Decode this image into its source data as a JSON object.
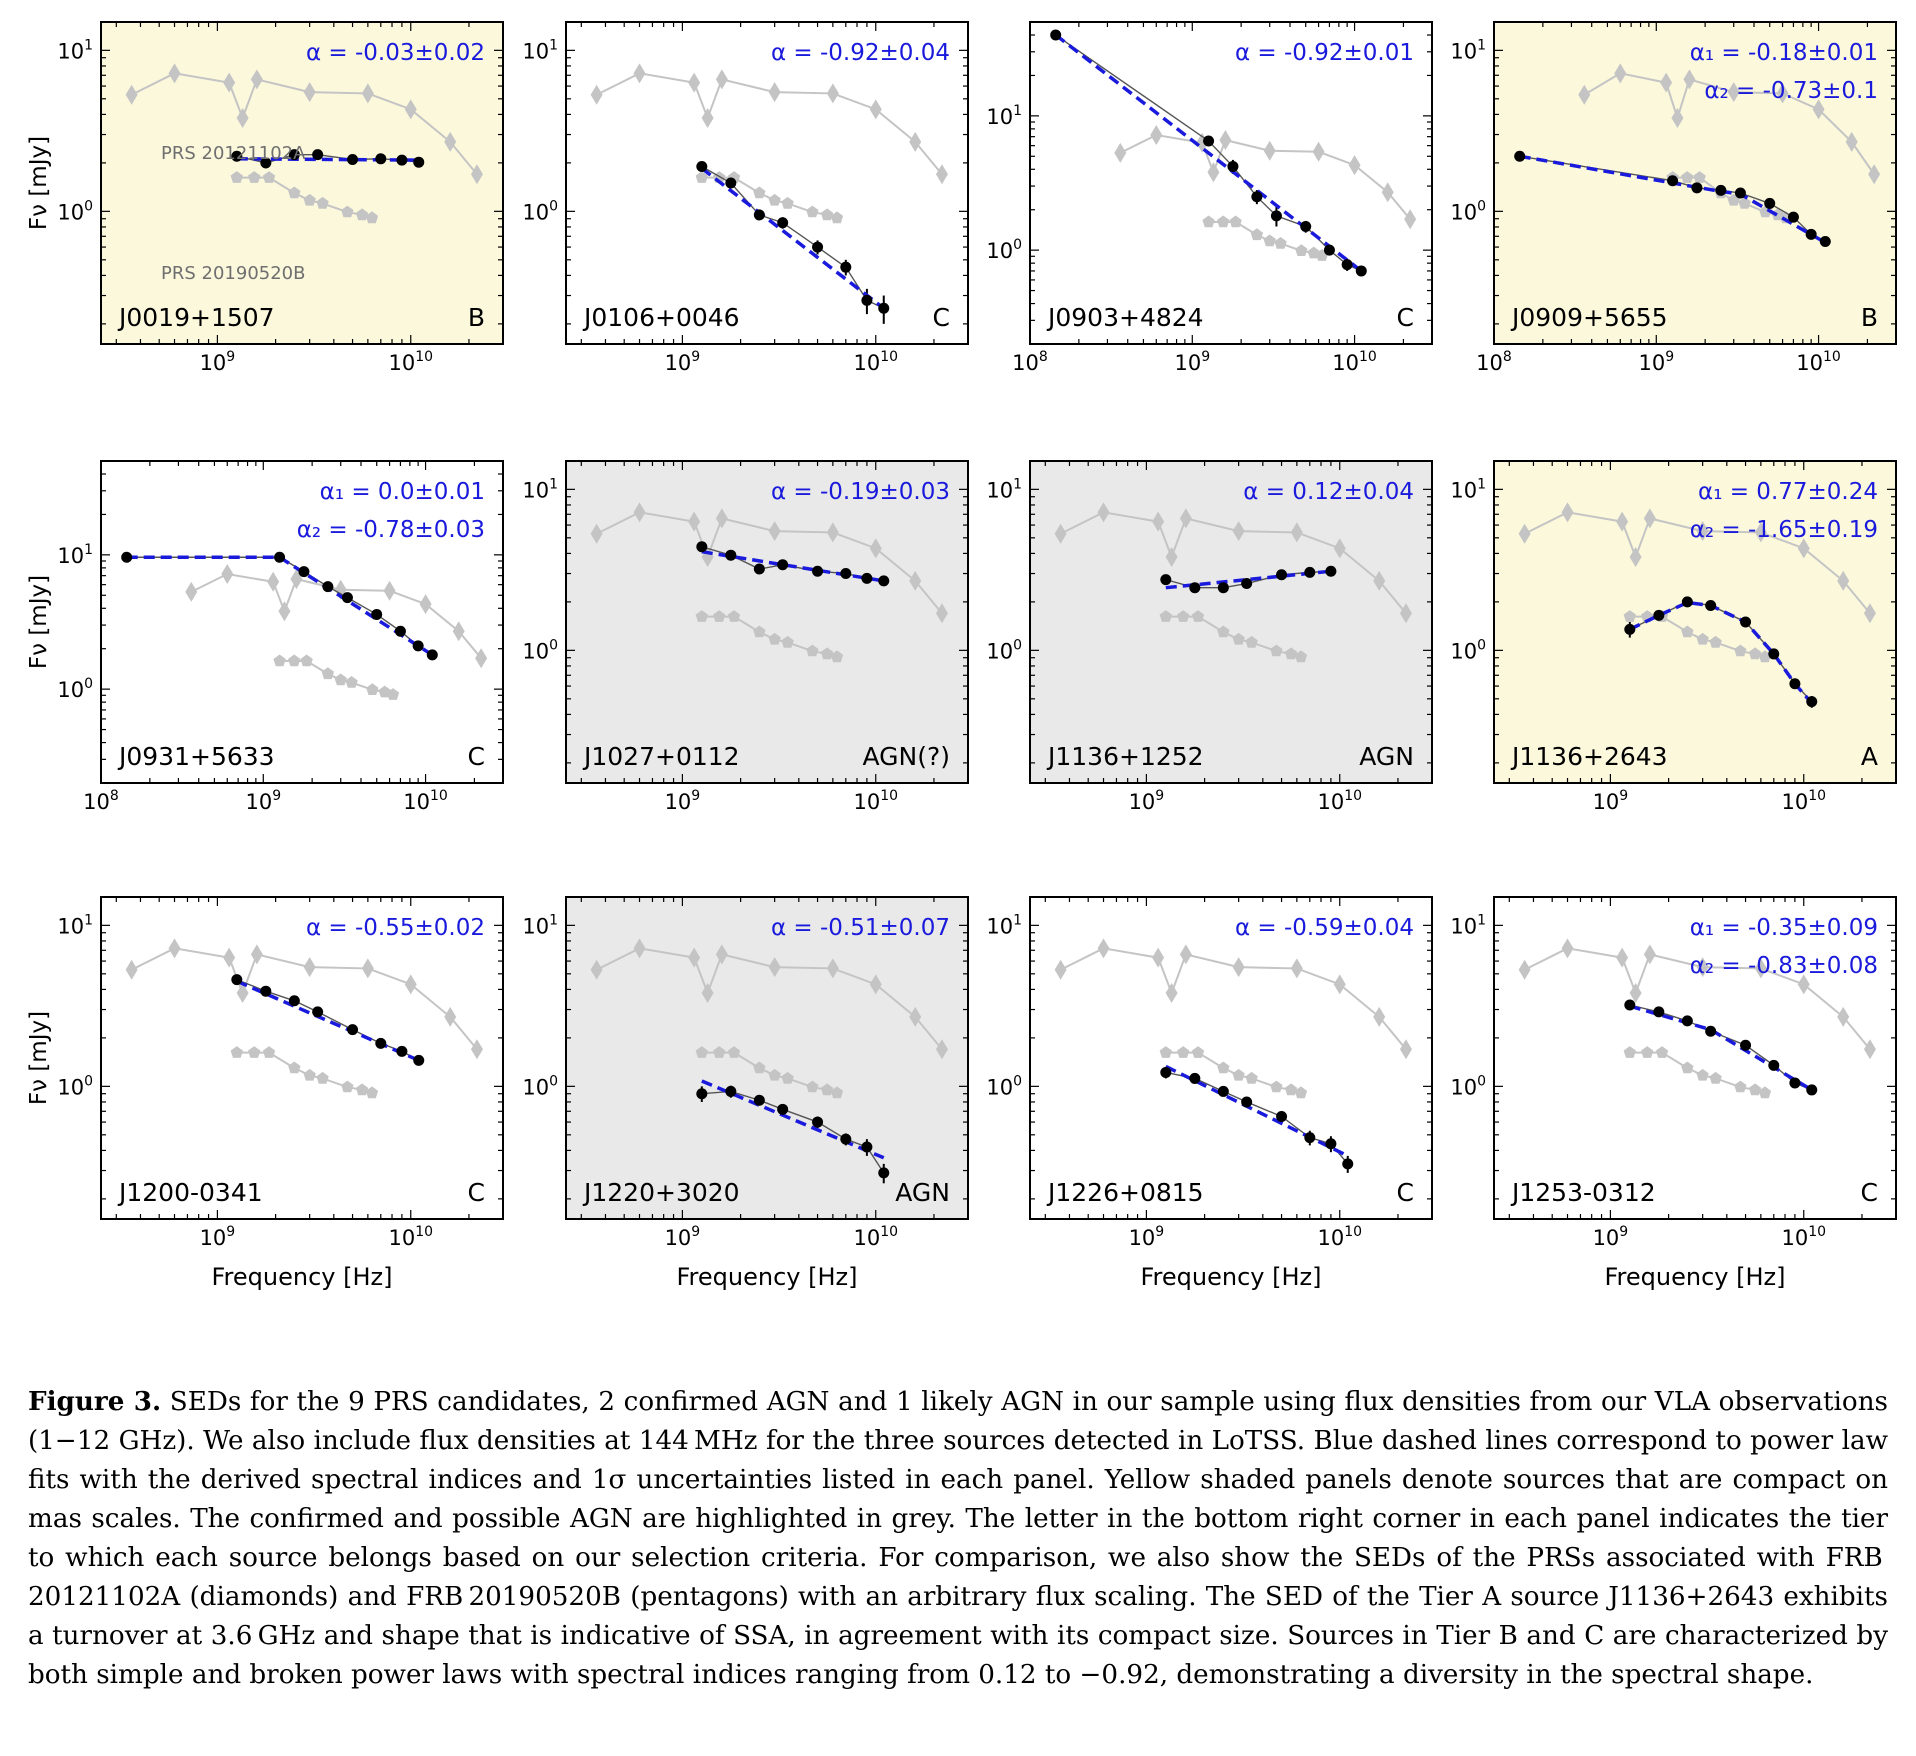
{
  "caption": {
    "label": "Figure 3.",
    "text": "SEDs for the 9 PRS candidates, 2 confirmed AGN and 1 likely AGN in our sample using flux densities from our VLA observations (1−12 GHz). We also include flux densities at 144 MHz for the three sources detected in LoTSS. Blue dashed lines correspond to power law fits with the derived spectral indices and 1σ uncertainties listed in each panel. Yellow shaded panels denote sources that are compact on mas scales. The confirmed and possible AGN are highlighted in grey. The letter in the bottom right corner in each panel indicates the tier to which each source belongs based on our selection criteria. For comparison, we also show the SEDs of the PRSs associated with FRB 20121102A (diamonds) and FRB 20190520B (pentagons) with an arbitrary flux scaling. The SED of the Tier A source J1136+2643 exhibits a turnover at 3.6 GHz and shape that is indicative of SSA, in agreement with its compact size. Sources in Tier B and C are characterized by both simple and broken power laws with spectral indices ranging from 0.12 to −0.92, demonstrating a diversity in the spectral shape."
  },
  "colors": {
    "compact_bg": "#fbf8dc",
    "agn_bg": "#e9e9e9",
    "fit_line": "#1a1adc",
    "data_marker": "#000000",
    "reference_sed": "#c4c4c4",
    "reference_label": "#6f6f6f"
  },
  "axis_labels": {
    "x": "Frequency [Hz]",
    "y": "Fν [mJy]"
  },
  "reference_labels": {
    "frb1": "PRS 20121102A",
    "frb2": "PRS 20190520B"
  },
  "chart_data": [
    {
      "type": "scatter",
      "name": "J0019+1507",
      "tier": "B",
      "shading": "compact",
      "xlim": [
        250000000.0,
        30000000000.0
      ],
      "ylim": [
        0.15,
        15
      ],
      "xscale": "log",
      "yscale": "log",
      "xticks": [
        "10^9",
        "10^10"
      ],
      "yticks": [
        "10^0",
        "10^1"
      ],
      "fit_labels": [
        "α = -0.03±0.02"
      ],
      "data": {
        "x": [
          1260000000.0,
          1780000000.0,
          2500000000.0,
          3300000000.0,
          5000000000.0,
          7000000000.0,
          9000000000.0,
          11000000000.0
        ],
        "y": [
          2.2,
          2.0,
          2.25,
          2.25,
          2.1,
          2.12,
          2.08,
          2.02
        ],
        "err": [
          0.1,
          0.15,
          0.1,
          0.1,
          0.1,
          0.1,
          0.1,
          0.1
        ]
      },
      "fit": [
        [
          1260000000.0,
          2.12
        ],
        [
          11000000000.0,
          2.08
        ]
      ]
    },
    {
      "type": "scatter",
      "name": "J0106+0046",
      "tier": "C",
      "shading": "none",
      "xlim": [
        250000000.0,
        30000000000.0
      ],
      "ylim": [
        0.15,
        15
      ],
      "xscale": "log",
      "yscale": "log",
      "xticks": [
        "10^9",
        "10^10"
      ],
      "yticks": [
        "10^0",
        "10^1"
      ],
      "fit_labels": [
        "α = -0.92±0.04"
      ],
      "data": {
        "x": [
          1260000000.0,
          1780000000.0,
          2500000000.0,
          3300000000.0,
          5000000000.0,
          7000000000.0,
          9000000000.0,
          11000000000.0
        ],
        "y": [
          1.9,
          1.5,
          0.95,
          0.85,
          0.6,
          0.45,
          0.28,
          0.25
        ],
        "err": [
          0.1,
          0.1,
          0.07,
          0.07,
          0.06,
          0.05,
          0.05,
          0.05
        ]
      },
      "fit": [
        [
          1260000000.0,
          1.85
        ],
        [
          11000000000.0,
          0.25
        ]
      ]
    },
    {
      "type": "scatter",
      "name": "J0903+4824",
      "tier": "C",
      "shading": "none",
      "xlim": [
        100000000.0,
        30000000000.0
      ],
      "ylim": [
        0.2,
        50
      ],
      "xscale": "log",
      "yscale": "log",
      "xticks": [
        "10^8",
        "10^9",
        "10^10"
      ],
      "yticks": [
        "10^0",
        "10^1"
      ],
      "fit_labels": [
        "α = -0.92±0.01"
      ],
      "data": {
        "x": [
          144000000.0,
          1260000000.0,
          1780000000.0,
          2500000000.0,
          3300000000.0,
          5000000000.0,
          7000000000.0,
          9000000000.0,
          11000000000.0
        ],
        "y": [
          40,
          6.5,
          4.2,
          2.5,
          1.8,
          1.5,
          1.0,
          0.78,
          0.7
        ],
        "err": [
          1.0,
          0.5,
          0.5,
          0.3,
          0.3,
          0.15,
          0.08,
          0.08,
          0.05
        ]
      },
      "fit": [
        [
          144000000.0,
          40
        ],
        [
          11000000000.0,
          0.7
        ]
      ]
    },
    {
      "type": "scatter",
      "name": "J0909+5655",
      "tier": "B",
      "shading": "compact",
      "xlim": [
        100000000.0,
        30000000000.0
      ],
      "ylim": [
        0.15,
        15
      ],
      "xscale": "log",
      "yscale": "log",
      "xticks": [
        "10^8",
        "10^9",
        "10^10"
      ],
      "yticks": [
        "10^0",
        "10^1"
      ],
      "fit_labels": [
        "α₁ = -0.18±0.01",
        "α₂ = -0.73±0.1"
      ],
      "data": {
        "x": [
          144000000.0,
          1260000000.0,
          1780000000.0,
          2500000000.0,
          3300000000.0,
          5000000000.0,
          7000000000.0,
          9000000000.0,
          11000000000.0
        ],
        "y": [
          2.2,
          1.55,
          1.4,
          1.35,
          1.3,
          1.12,
          0.92,
          0.72,
          0.65
        ],
        "err": [
          0.05,
          0.1,
          0.1,
          0.08,
          0.08,
          0.06,
          0.05,
          0.05,
          0.04
        ]
      },
      "fit": [
        [
          144000000.0,
          2.2
        ],
        [
          1260000000.0,
          1.5
        ],
        [
          2500000000.0,
          1.33
        ],
        [
          3300000000.0,
          1.28
        ],
        [
          11000000000.0,
          0.64
        ]
      ]
    },
    {
      "type": "scatter",
      "name": "J0931+5633",
      "tier": "C",
      "shading": "none",
      "xlim": [
        100000000.0,
        30000000000.0
      ],
      "ylim": [
        0.2,
        50
      ],
      "xscale": "log",
      "yscale": "log",
      "xticks": [
        "10^8",
        "10^9",
        "10^10"
      ],
      "yticks": [
        "10^0",
        "10^1"
      ],
      "fit_labels": [
        "α₁ = 0.0±0.01",
        "α₂ = -0.78±0.03"
      ],
      "data": {
        "x": [
          144000000.0,
          1260000000.0,
          1780000000.0,
          2500000000.0,
          3300000000.0,
          5000000000.0,
          7000000000.0,
          9000000000.0,
          11000000000.0
        ],
        "y": [
          9.6,
          9.6,
          7.5,
          5.8,
          4.8,
          3.6,
          2.7,
          2.1,
          1.8
        ],
        "err": [
          0.2,
          0.3,
          0.3,
          0.2,
          0.2,
          0.15,
          0.12,
          0.1,
          0.1
        ]
      },
      "fit": [
        [
          144000000.0,
          9.6
        ],
        [
          1260000000.0,
          9.6
        ],
        [
          11000000000.0,
          1.8
        ]
      ]
    },
    {
      "type": "scatter",
      "name": "J1027+0112",
      "tier": "AGN(?)",
      "shading": "agn",
      "xlim": [
        250000000.0,
        30000000000.0
      ],
      "ylim": [
        0.15,
        15
      ],
      "xscale": "log",
      "yscale": "log",
      "xticks": [
        "10^9",
        "10^10"
      ],
      "yticks": [
        "10^0",
        "10^1"
      ],
      "fit_labels": [
        "α = -0.19±0.03"
      ],
      "data": {
        "x": [
          1260000000.0,
          1780000000.0,
          2500000000.0,
          3300000000.0,
          5000000000.0,
          7000000000.0,
          9000000000.0,
          11000000000.0
        ],
        "y": [
          4.4,
          3.9,
          3.2,
          3.4,
          3.1,
          3.0,
          2.8,
          2.7
        ],
        "err": [
          0.3,
          0.2,
          0.2,
          0.2,
          0.15,
          0.15,
          0.1,
          0.1
        ]
      },
      "fit": [
        [
          1260000000.0,
          4.1
        ],
        [
          11000000000.0,
          2.7
        ]
      ]
    },
    {
      "type": "scatter",
      "name": "J1136+1252",
      "tier": "AGN",
      "shading": "agn",
      "xlim": [
        250000000.0,
        30000000000.0
      ],
      "ylim": [
        0.15,
        15
      ],
      "xscale": "log",
      "yscale": "log",
      "xticks": [
        "10^9",
        "10^10"
      ],
      "yticks": [
        "10^0",
        "10^1"
      ],
      "fit_labels": [
        "α = 0.12±0.04"
      ],
      "data": {
        "x": [
          1260000000.0,
          1780000000.0,
          2500000000.0,
          3300000000.0,
          5000000000.0,
          7000000000.0,
          9000000000.0
        ],
        "y": [
          2.75,
          2.45,
          2.45,
          2.6,
          2.95,
          3.05,
          3.1
        ],
        "err": [
          0.2,
          0.15,
          0.15,
          0.15,
          0.15,
          0.15,
          0.2
        ]
      },
      "fit": [
        [
          1260000000.0,
          2.45
        ],
        [
          9000000000.0,
          3.1
        ]
      ]
    },
    {
      "type": "scatter",
      "name": "J1136+2643",
      "tier": "A",
      "shading": "compact",
      "xlim": [
        250000000.0,
        30000000000.0
      ],
      "ylim": [
        0.15,
        15
      ],
      "xscale": "log",
      "yscale": "log",
      "xticks": [
        "10^9",
        "10^10"
      ],
      "yticks": [
        "10^0",
        "10^1"
      ],
      "fit_labels": [
        "α₁ = 0.77±0.24",
        "α₂ = -1.65±0.19"
      ],
      "data": {
        "x": [
          1260000000.0,
          1780000000.0,
          2500000000.0,
          3300000000.0,
          5000000000.0,
          7000000000.0,
          9000000000.0,
          11000000000.0
        ],
        "y": [
          1.35,
          1.65,
          2.0,
          1.9,
          1.5,
          0.95,
          0.62,
          0.48
        ],
        "err": [
          0.15,
          0.1,
          0.08,
          0.08,
          0.06,
          0.05,
          0.04,
          0.04
        ]
      },
      "fit": [
        [
          1260000000.0,
          1.35
        ],
        [
          1780000000.0,
          1.65
        ],
        [
          2500000000.0,
          1.98
        ],
        [
          3300000000.0,
          1.9
        ],
        [
          5000000000.0,
          1.5
        ],
        [
          7000000000.0,
          0.95
        ],
        [
          9000000000.0,
          0.62
        ],
        [
          11000000000.0,
          0.47
        ]
      ]
    },
    {
      "type": "scatter",
      "name": "J1200-0341",
      "tier": "C",
      "shading": "none",
      "xlim": [
        250000000.0,
        30000000000.0
      ],
      "ylim": [
        0.15,
        15
      ],
      "xscale": "log",
      "yscale": "log",
      "xticks": [
        "10^9",
        "10^10"
      ],
      "yticks": [
        "10^0",
        "10^1"
      ],
      "fit_labels": [
        "α = -0.55±0.02"
      ],
      "data": {
        "x": [
          1260000000.0,
          1780000000.0,
          2500000000.0,
          3300000000.0,
          5000000000.0,
          7000000000.0,
          9000000000.0,
          11000000000.0
        ],
        "y": [
          4.6,
          3.9,
          3.4,
          2.9,
          2.25,
          1.85,
          1.65,
          1.45
        ],
        "err": [
          0.2,
          0.15,
          0.12,
          0.1,
          0.08,
          0.08,
          0.06,
          0.06
        ]
      },
      "fit": [
        [
          1260000000.0,
          4.5
        ],
        [
          11000000000.0,
          1.45
        ]
      ]
    },
    {
      "type": "scatter",
      "name": "J1220+3020",
      "tier": "AGN",
      "shading": "agn",
      "xlim": [
        250000000.0,
        30000000000.0
      ],
      "ylim": [
        0.15,
        15
      ],
      "xscale": "log",
      "yscale": "log",
      "xticks": [
        "10^9",
        "10^10"
      ],
      "yticks": [
        "10^0",
        "10^1"
      ],
      "fit_labels": [
        "α = -0.51±0.07"
      ],
      "data": {
        "x": [
          1260000000.0,
          1780000000.0,
          2500000000.0,
          3300000000.0,
          5000000000.0,
          7000000000.0,
          9000000000.0,
          11000000000.0
        ],
        "y": [
          0.9,
          0.93,
          0.82,
          0.72,
          0.6,
          0.47,
          0.42,
          0.29
        ],
        "err": [
          0.1,
          0.08,
          0.06,
          0.05,
          0.05,
          0.04,
          0.05,
          0.04
        ]
      },
      "fit": [
        [
          1260000000.0,
          1.08
        ],
        [
          11000000000.0,
          0.36
        ]
      ]
    },
    {
      "type": "scatter",
      "name": "J1226+0815",
      "tier": "C",
      "shading": "none",
      "xlim": [
        250000000.0,
        30000000000.0
      ],
      "ylim": [
        0.15,
        15
      ],
      "xscale": "log",
      "yscale": "log",
      "xticks": [
        "10^9",
        "10^10"
      ],
      "yticks": [
        "10^0",
        "10^1"
      ],
      "fit_labels": [
        "α = -0.59±0.04"
      ],
      "data": {
        "x": [
          1260000000.0,
          1780000000.0,
          2500000000.0,
          3300000000.0,
          5000000000.0,
          7000000000.0,
          9000000000.0,
          11000000000.0
        ],
        "y": [
          1.22,
          1.12,
          0.93,
          0.8,
          0.65,
          0.48,
          0.44,
          0.33
        ],
        "err": [
          0.1,
          0.08,
          0.06,
          0.05,
          0.05,
          0.05,
          0.05,
          0.04
        ]
      },
      "fit": [
        [
          1260000000.0,
          1.33
        ],
        [
          11000000000.0,
          0.37
        ]
      ]
    },
    {
      "type": "scatter",
      "name": "J1253-0312",
      "tier": "C",
      "shading": "none",
      "xlim": [
        250000000.0,
        30000000000.0
      ],
      "ylim": [
        0.15,
        15
      ],
      "xscale": "log",
      "yscale": "log",
      "xticks": [
        "10^9",
        "10^10"
      ],
      "yticks": [
        "10^0",
        "10^1"
      ],
      "fit_labels": [
        "α₁ = -0.35±0.09",
        "α₂ = -0.83±0.08"
      ],
      "data": {
        "x": [
          1260000000.0,
          1780000000.0,
          2500000000.0,
          3300000000.0,
          5000000000.0,
          7000000000.0,
          9000000000.0,
          11000000000.0
        ],
        "y": [
          3.2,
          2.9,
          2.55,
          2.2,
          1.8,
          1.35,
          1.05,
          0.95
        ],
        "err": [
          0.2,
          0.1,
          0.08,
          0.08,
          0.06,
          0.06,
          0.05,
          0.05
        ]
      },
      "fit": [
        [
          1260000000.0,
          3.15
        ],
        [
          3300000000.0,
          2.25
        ],
        [
          11000000000.0,
          0.95
        ]
      ]
    }
  ],
  "reference_seds": {
    "frb1_diamonds": {
      "x": [
        360000000.0,
        600000000.0,
        1150000000.0,
        1350000000.0,
        1600000000.0,
        3000000000.0,
        6000000000.0,
        10000000000.0,
        16000000000.0,
        22000000000.0
      ],
      "y": [
        5.3,
        7.2,
        6.3,
        3.8,
        6.6,
        5.5,
        5.4,
        4.3,
        2.7,
        1.7
      ]
    },
    "frb2_pentagons": {
      "x": [
        1260000000.0,
        1550000000.0,
        1850000000.0,
        2500000000.0,
        3000000000.0,
        3500000000.0,
        4700000000.0,
        5600000000.0,
        6300000000.0
      ],
      "y": [
        1.62,
        1.62,
        1.62,
        1.3,
        1.17,
        1.12,
        0.99,
        0.95,
        0.91
      ]
    }
  }
}
